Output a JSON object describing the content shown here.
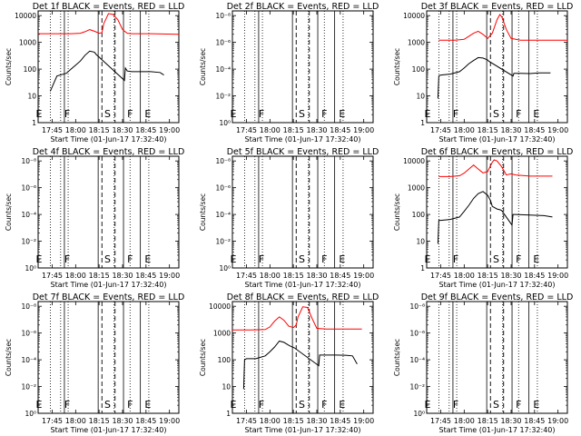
{
  "window": {
    "title": ""
  },
  "common": {
    "xlabel": "Start Time (01-Jun-17 17:32:40)",
    "ylabel": "Counts/sec",
    "x_ticks": [
      {
        "label": "17:45",
        "t": 0.25
      },
      {
        "label": "18:00",
        "t": 0.5
      },
      {
        "label": "18:15",
        "t": 0.75
      },
      {
        "label": "18:30",
        "t": 1.0
      },
      {
        "label": "18:45",
        "t": 1.25
      },
      {
        "label": "19:00",
        "t": 1.5
      }
    ],
    "y_ticks_log": [
      "1",
      "10",
      "100",
      "1000",
      "10000"
    ],
    "y_ticks_empty": [
      "10⁰",
      "10⁻²",
      "10⁻⁴",
      "10⁻⁶",
      "10⁻⁸"
    ],
    "dotted_lines_t": [
      0.23,
      0.34,
      0.42,
      0.91,
      1.08,
      1.28
    ],
    "solid_lines_t": [
      0.38,
      0.74,
      1.01,
      1.19
    ],
    "dashed_lines_t": [
      0.78,
      0.92
    ],
    "region_letters": [
      {
        "text": "E",
        "t": 0.11
      },
      {
        "text": "F",
        "t": 0.41
      },
      {
        "text": "S",
        "t": 0.84
      },
      {
        "text": "F",
        "t": 1.08
      },
      {
        "text": "E",
        "t": 1.27
      }
    ]
  },
  "chart_data": [
    {
      "type": "line",
      "title": "Det 1f BLACK = Events, RED = LLD",
      "yscale": "log",
      "ylim": [
        1,
        15000
      ],
      "xlim": [
        0.1,
        1.6
      ],
      "series": [
        {
          "name": "Events",
          "color": "#000000",
          "x": [
            0.23,
            0.3,
            0.4,
            0.45,
            0.5,
            0.55,
            0.6,
            0.65,
            0.7,
            0.72,
            0.75,
            0.76,
            1.02,
            1.03,
            1.05,
            1.1,
            1.2,
            1.3,
            1.4,
            1.44
          ],
          "y": [
            15,
            55,
            70,
            100,
            140,
            200,
            330,
            470,
            430,
            350,
            280,
            260,
            38,
            110,
            85,
            80,
            80,
            80,
            75,
            60
          ]
        },
        {
          "name": "LLD",
          "color": "#ff0000",
          "x": [
            0.1,
            0.3,
            0.45,
            0.55,
            0.6,
            0.65,
            0.7,
            0.75,
            0.78,
            0.8,
            0.85,
            0.9,
            0.95,
            1.0,
            1.05,
            1.1,
            1.3,
            1.6
          ],
          "y": [
            2100,
            2100,
            2100,
            2200,
            2500,
            3000,
            2600,
            2200,
            2300,
            5000,
            12000,
            11000,
            7000,
            3000,
            2200,
            2100,
            2100,
            2000
          ]
        }
      ]
    },
    {
      "type": "line",
      "title": "Det 2f BLACK = Events, RED = LLD",
      "yscale": "log",
      "ylim": [
        1,
        15000
      ],
      "xlim": [
        0.1,
        1.6
      ],
      "empty": true,
      "series": []
    },
    {
      "type": "line",
      "title": "Det 3f BLACK = Events, RED = LLD",
      "yscale": "log",
      "ylim": [
        1,
        15000
      ],
      "xlim": [
        0.1,
        1.6
      ],
      "series": [
        {
          "name": "Events",
          "color": "#000000",
          "x": [
            0.22,
            0.23,
            0.25,
            0.35,
            0.45,
            0.5,
            0.55,
            0.6,
            0.65,
            0.7,
            0.75,
            0.76,
            1.02,
            1.03,
            1.1,
            1.2,
            1.3,
            1.42
          ],
          "y": [
            8,
            55,
            60,
            65,
            80,
            110,
            160,
            210,
            270,
            260,
            220,
            200,
            55,
            70,
            70,
            68,
            72,
            72
          ]
        },
        {
          "name": "LLD",
          "color": "#ff0000",
          "x": [
            0.23,
            0.4,
            0.5,
            0.55,
            0.6,
            0.65,
            0.7,
            0.75,
            0.8,
            0.85,
            0.88,
            0.9,
            0.95,
            1.0,
            1.1,
            1.3,
            1.6
          ],
          "y": [
            1200,
            1200,
            1300,
            1700,
            2200,
            2600,
            2000,
            1400,
            2200,
            7000,
            11000,
            9000,
            3000,
            1400,
            1200,
            1200,
            1200
          ]
        }
      ]
    },
    {
      "type": "line",
      "title": "Det 4f BLACK = Events, RED = LLD",
      "yscale": "log",
      "ylim": [
        1,
        15000
      ],
      "xlim": [
        0.1,
        1.6
      ],
      "empty": true,
      "series": []
    },
    {
      "type": "line",
      "title": "Det 5f BLACK = Events, RED = LLD",
      "yscale": "log",
      "ylim": [
        1,
        15000
      ],
      "xlim": [
        0.1,
        1.6
      ],
      "empty": true,
      "series": []
    },
    {
      "type": "line",
      "title": "Det 6f BLACK = Events, RED = LLD",
      "yscale": "log",
      "ylim": [
        1,
        15000
      ],
      "xlim": [
        0.1,
        1.6
      ],
      "series": [
        {
          "name": "Events",
          "color": "#000000",
          "x": [
            0.22,
            0.23,
            0.25,
            0.35,
            0.45,
            0.5,
            0.55,
            0.6,
            0.65,
            0.7,
            0.75,
            0.78,
            0.8,
            0.85,
            0.88,
            0.9,
            1.01,
            1.02,
            1.05,
            1.2,
            1.35,
            1.44
          ],
          "y": [
            8,
            60,
            60,
            65,
            80,
            130,
            220,
            400,
            600,
            720,
            520,
            330,
            200,
            160,
            150,
            140,
            40,
            100,
            100,
            95,
            90,
            80
          ]
        },
        {
          "name": "LLD",
          "color": "#ff0000",
          "x": [
            0.23,
            0.35,
            0.45,
            0.5,
            0.55,
            0.6,
            0.65,
            0.7,
            0.75,
            0.8,
            0.82,
            0.85,
            0.9,
            0.95,
            1.0,
            1.05,
            1.2,
            1.44
          ],
          "y": [
            2600,
            2600,
            2800,
            3500,
            5000,
            7000,
            5000,
            3600,
            4000,
            9000,
            11000,
            10000,
            6000,
            3000,
            3300,
            3000,
            2700,
            2700
          ]
        }
      ]
    },
    {
      "type": "line",
      "title": "Det 7f BLACK = Events, RED = LLD",
      "yscale": "log",
      "ylim": [
        1,
        15000
      ],
      "xlim": [
        0.1,
        1.6
      ],
      "empty": true,
      "series": []
    },
    {
      "type": "line",
      "title": "Det 8f BLACK = Events, RED = LLD",
      "yscale": "log",
      "ylim": [
        1,
        15000
      ],
      "xlim": [
        0.1,
        1.6
      ],
      "series": [
        {
          "name": "Events",
          "color": "#000000",
          "x": [
            0.22,
            0.23,
            0.25,
            0.35,
            0.45,
            0.5,
            0.55,
            0.6,
            0.65,
            0.7,
            0.72,
            0.76,
            1.02,
            1.03,
            1.1,
            1.2,
            1.3,
            1.38,
            1.43
          ],
          "y": [
            8,
            100,
            110,
            110,
            140,
            200,
            300,
            500,
            450,
            350,
            320,
            280,
            60,
            150,
            150,
            150,
            148,
            140,
            70
          ]
        },
        {
          "name": "LLD",
          "color": "#ff0000",
          "x": [
            0.1,
            0.3,
            0.45,
            0.5,
            0.55,
            0.6,
            0.65,
            0.7,
            0.75,
            0.78,
            0.8,
            0.85,
            0.9,
            0.95,
            1.0,
            1.1,
            1.3,
            1.48
          ],
          "y": [
            1300,
            1300,
            1350,
            1700,
            2800,
            4000,
            3000,
            1800,
            1600,
            2000,
            4000,
            9500,
            9000,
            3500,
            1500,
            1400,
            1400,
            1400
          ]
        }
      ]
    },
    {
      "type": "line",
      "title": "Det 9f BLACK = Events, RED = LLD",
      "yscale": "log",
      "ylim": [
        1,
        15000
      ],
      "xlim": [
        0.1,
        1.6
      ],
      "empty": true,
      "series": []
    }
  ]
}
